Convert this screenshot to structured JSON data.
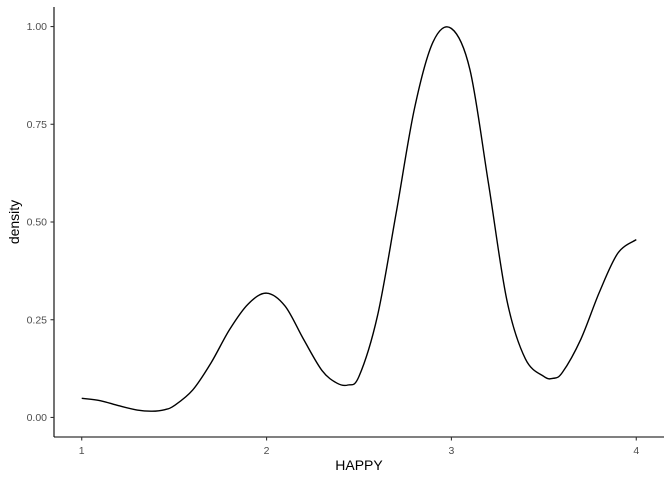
{
  "chart_data": {
    "type": "line",
    "title": "",
    "xlabel": "HAPPY",
    "ylabel": "density",
    "xlim": [
      0.85,
      4.15
    ],
    "ylim": [
      -0.05,
      1.05
    ],
    "x_ticks": [
      1,
      2,
      3,
      4
    ],
    "x_tick_labels": [
      "1",
      "2",
      "3",
      "4"
    ],
    "y_ticks": [
      0,
      0.25,
      0.5,
      0.75,
      1.0
    ],
    "y_tick_labels": [
      "0.00",
      "0.25",
      "0.50",
      "0.75",
      "1.00"
    ],
    "grid": false,
    "legend": "none",
    "line_color": "#000000",
    "series": [
      {
        "x": [
          1.0,
          1.1,
          1.2,
          1.3,
          1.38,
          1.45,
          1.5,
          1.6,
          1.7,
          1.8,
          1.9,
          2.0,
          2.1,
          2.2,
          2.3,
          2.38,
          2.44,
          2.5,
          2.6,
          2.7,
          2.8,
          2.9,
          3.0,
          3.1,
          3.2,
          3.3,
          3.4,
          3.5,
          3.55,
          3.6,
          3.7,
          3.8,
          3.9,
          4.0
        ],
        "y": [
          0.049,
          0.043,
          0.03,
          0.019,
          0.016,
          0.02,
          0.03,
          0.07,
          0.14,
          0.225,
          0.29,
          0.318,
          0.285,
          0.2,
          0.12,
          0.088,
          0.083,
          0.105,
          0.26,
          0.52,
          0.79,
          0.96,
          0.995,
          0.89,
          0.6,
          0.3,
          0.15,
          0.105,
          0.1,
          0.115,
          0.2,
          0.32,
          0.42,
          0.455
        ]
      }
    ]
  }
}
